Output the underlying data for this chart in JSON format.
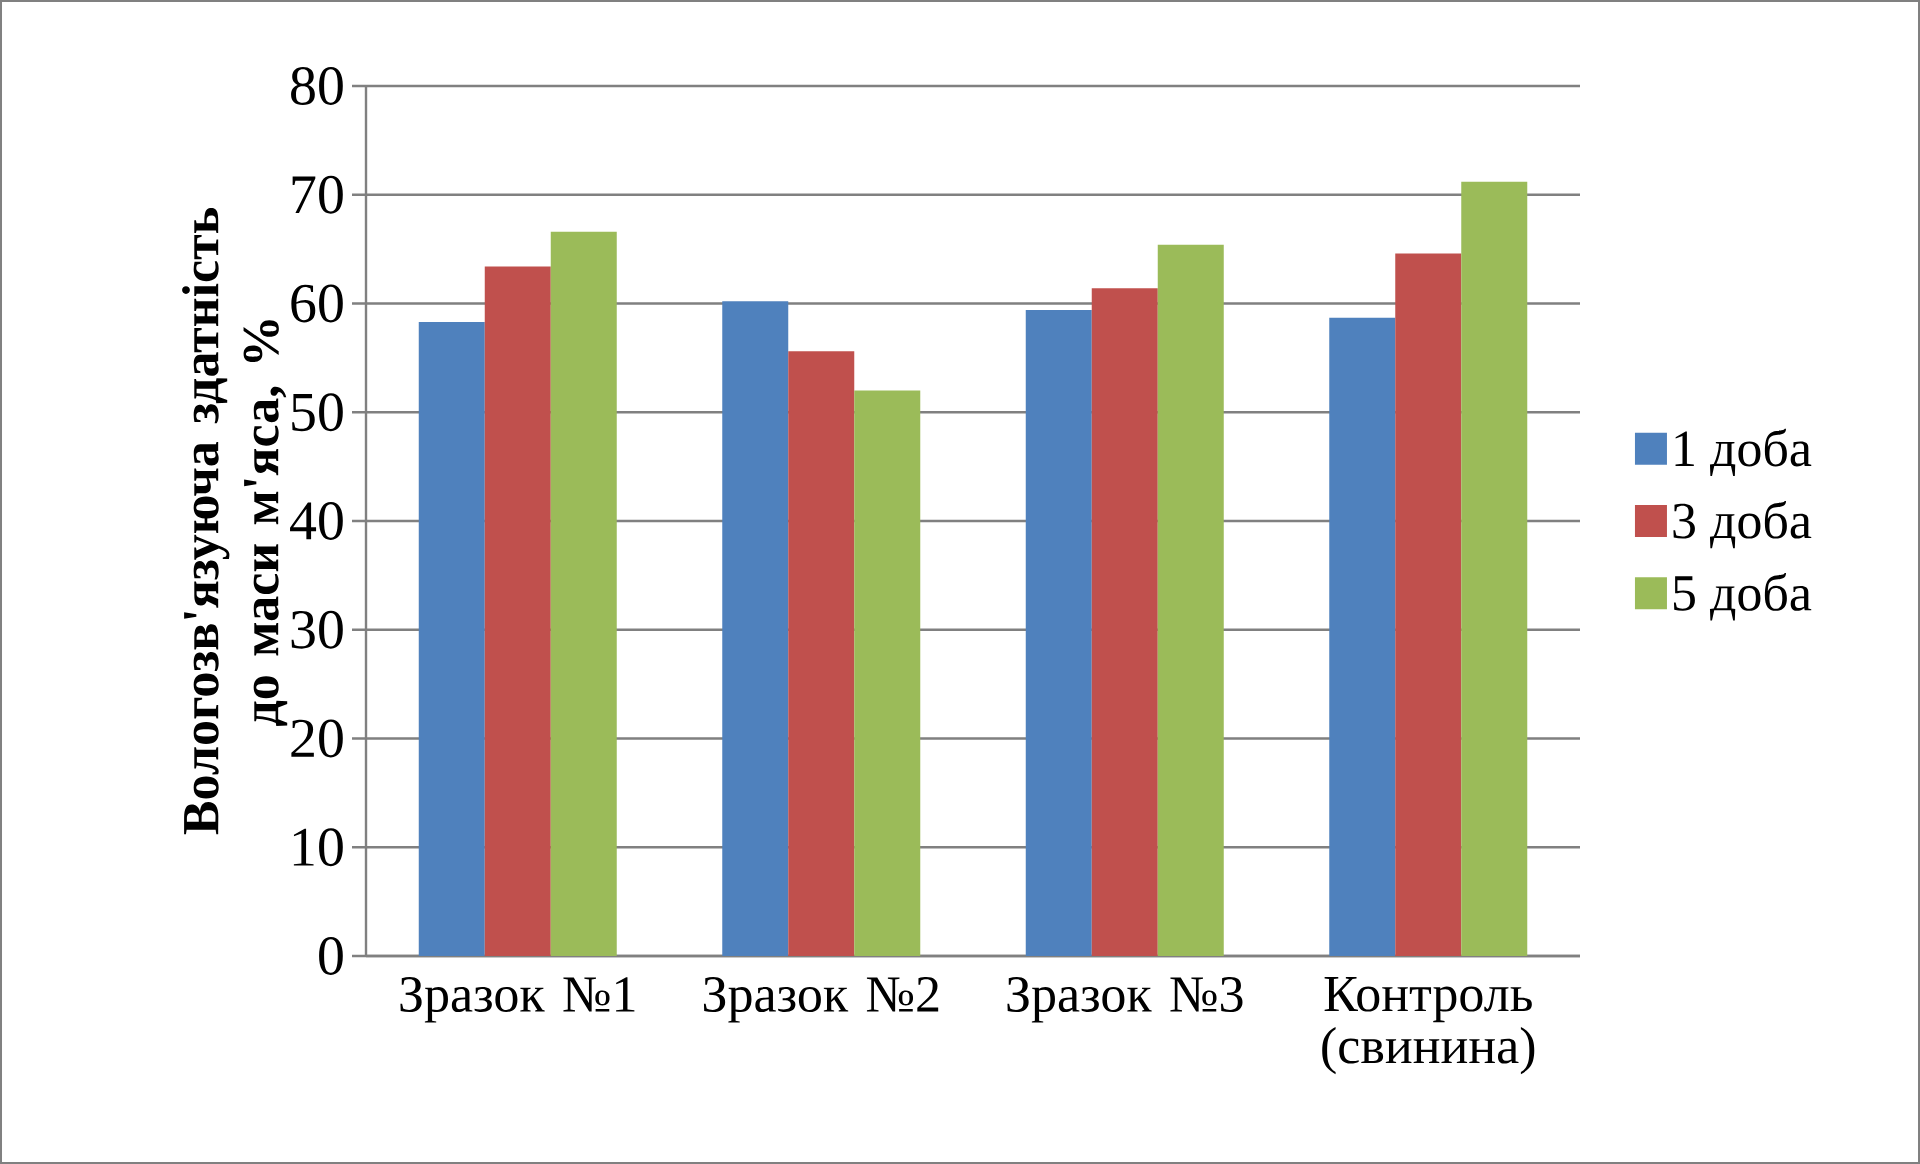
{
  "chart_data": {
    "type": "bar",
    "ylabel": "Вологозв'язуюча здатність до маси м'яса, %",
    "categories": [
      "Зразок №1",
      "Зразок №2",
      "Зразок №3",
      "Контроль (свинина)"
    ],
    "series": [
      {
        "name": "1 доба",
        "color": "#4f81bd",
        "values": [
          58.3,
          60.2,
          59.4,
          58.7
        ]
      },
      {
        "name": "3 доба",
        "color": "#c0504d",
        "values": [
          63.4,
          55.6,
          61.4,
          64.6
        ]
      },
      {
        "name": "5 доба",
        "color": "#9bbb59",
        "values": [
          66.6,
          52.0,
          65.4,
          71.2
        ]
      }
    ],
    "ylim": [
      0,
      80
    ],
    "yticks": [
      0,
      10,
      20,
      30,
      40,
      50,
      60,
      70,
      80
    ],
    "grid": "y",
    "legend": "right"
  }
}
